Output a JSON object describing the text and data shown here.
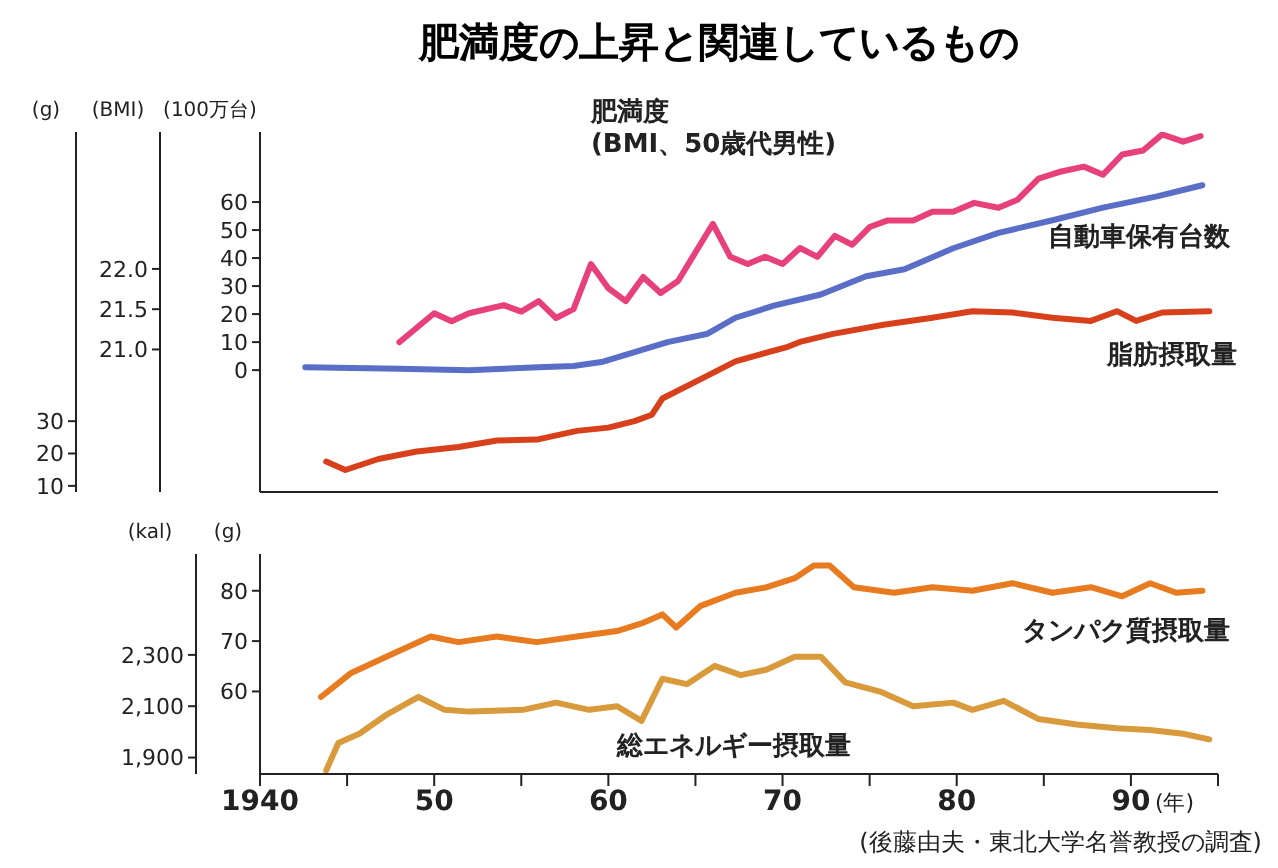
{
  "chart_data": [
    {
      "type": "line",
      "title": "肥満度の上昇と関連しているもの",
      "ylabel": "(100万台)",
      "y2label": "(BMI)",
      "y3label": "(g)",
      "xlim": [
        1940,
        1995
      ],
      "tick_labels": "y",
      "ylim": [
        -43.5,
        85
      ],
      "yticks": [
        0,
        10,
        20,
        30,
        40,
        50,
        60
      ],
      "y2lim": [
        19.23,
        23.7
      ],
      "y2ticks": [
        {
          "value": 21,
          "label": "21.0"
        },
        21.5,
        {
          "value": 22,
          "label": "22.0"
        }
      ],
      "y3lim": [
        8.1,
        119.4
      ],
      "y3ticks": [
        10,
        20,
        30
      ],
      "series": [
        {
          "name": "肥満度\n(BMI、50歳代男性)",
          "color": "#e8407a",
          "axis": "y2",
          "x": [
            1948,
            1950,
            1951,
            1952,
            1954,
            1955,
            1956,
            1957,
            1958,
            1959,
            1960,
            1961,
            1962,
            1963,
            1964,
            1966,
            1967,
            1968,
            1969,
            1970,
            1971,
            1972,
            1973,
            1974,
            1975,
            1976,
            1977.5,
            1978.6,
            1979.8,
            1981,
            1982.4,
            1983.5,
            1984.7,
            1986,
            1987.3,
            1988.4,
            1989.5,
            1990.7,
            1991.8,
            1993,
            1994
          ],
          "values": [
            21.09,
            21.45,
            21.35,
            21.45,
            21.55,
            21.47,
            21.6,
            21.39,
            21.5,
            22.06,
            21.76,
            21.6,
            21.9,
            21.7,
            21.85,
            22.56,
            22.15,
            22.06,
            22.15,
            22.06,
            22.26,
            22.15,
            22.41,
            22.3,
            22.52,
            22.6,
            22.6,
            22.71,
            22.71,
            22.82,
            22.76,
            22.86,
            23.12,
            23.21,
            23.27,
            23.17,
            23.42,
            23.47,
            23.67,
            23.58,
            23.65
          ]
        },
        {
          "name": "自動車保有台数",
          "color": "#5a6ec8",
          "x": [
            1942.6,
            1948,
            1952,
            1956,
            1958,
            1959.7,
            1963.4,
            1965.7,
            1967.3,
            1969.5,
            1972.2,
            1974.8,
            1977,
            1979.8,
            1982.4,
            1985.5,
            1988.4,
            1991.5,
            1994.1
          ],
          "values": [
            1,
            0.5,
            0,
            1,
            1.5,
            3,
            10,
            13,
            18.7,
            23,
            27,
            33.5,
            36,
            43.5,
            49,
            53.5,
            58,
            62,
            66
          ]
        },
        {
          "name": "脂肪摂取量",
          "color": "#d8401c",
          "axis": "y3",
          "x": [
            1943.8,
            1944.9,
            1946.8,
            1949,
            1951.4,
            1953.6,
            1955.9,
            1958.2,
            1960,
            1961.5,
            1962.5,
            1963.1,
            1965.3,
            1967.3,
            1970.3,
            1971,
            1972.9,
            1975.8,
            1978.6,
            1980.9,
            1983.2,
            1985.5,
            1987.7,
            1989.2,
            1990.3,
            1991.8,
            1994.5
          ],
          "values": [
            17.5,
            14.9,
            18.3,
            20.6,
            22,
            24,
            24.3,
            27,
            28,
            30,
            32,
            37,
            43,
            48.5,
            53,
            54.5,
            57,
            59.8,
            62,
            64,
            63.6,
            62,
            61,
            64,
            61,
            63.6,
            64
          ]
        }
      ]
    },
    {
      "type": "line",
      "xlabel": "(年)",
      "ylabel": "(g)",
      "y2label": "(kal)",
      "xlim": [
        1940,
        1995
      ],
      "xticks": [
        1940,
        {
          "value": 1945,
          "label": null
        },
        {
          "value": 1950,
          "label": "50"
        },
        {
          "value": 1955,
          "label": null
        },
        {
          "value": 1960,
          "label": "60"
        },
        {
          "value": 1965,
          "label": null
        },
        {
          "value": 1970,
          "label": "70"
        },
        {
          "value": 1975,
          "label": null
        },
        {
          "value": 1980,
          "label": "80"
        },
        {
          "value": 1985,
          "label": null
        },
        {
          "value": 1990,
          "label": "90"
        },
        {
          "value": 1995,
          "label": null
        }
      ],
      "ylim": [
        43.6,
        87.3
      ],
      "yticks": [
        60,
        70,
        80
      ],
      "y2lim": [
        1836,
        2693
      ],
      "y2ticks": [
        {
          "value": 1900,
          "label": "1,900"
        },
        {
          "value": 2100,
          "label": "2,100"
        },
        {
          "value": 2300,
          "label": "2,300"
        }
      ],
      "series": [
        {
          "name": "タンパク質摂取量",
          "color": "#e87a20",
          "x": [
            1943.5,
            1945.2,
            1947.5,
            1949.8,
            1951.4,
            1953.6,
            1955.9,
            1958.2,
            1960.5,
            1961.9,
            1963.1,
            1963.9,
            1965.3,
            1967.3,
            1969.1,
            1970.7,
            1971.8,
            1972.7,
            1974.1,
            1976.4,
            1978.6,
            1980.9,
            1983.2,
            1985.5,
            1987.7,
            1989.5,
            1991.1,
            1992.6,
            1994.1
          ],
          "values": [
            58.9,
            63.6,
            67.3,
            70.9,
            69.8,
            70.9,
            69.8,
            70.9,
            72,
            73.5,
            75.3,
            72.7,
            77,
            79.6,
            80.7,
            82.5,
            85,
            85,
            80.7,
            79.6,
            80.7,
            80,
            81.5,
            79.6,
            80.7,
            78.9,
            81.5,
            79.6,
            80
          ]
        },
        {
          "name": "総エネルギー摂取量",
          "color": "#d89a3a",
          "axis": "y2",
          "x": [
            1943.8,
            1944.5,
            1945.7,
            1947.2,
            1949.1,
            1950.6,
            1952,
            1955.1,
            1957,
            1958.9,
            1960.5,
            1961.9,
            1963.1,
            1964.5,
            1966.1,
            1967.6,
            1969.1,
            1970.7,
            1972.2,
            1973.6,
            1975.6,
            1977.5,
            1979.8,
            1980.9,
            1982.7,
            1984.7,
            1986.9,
            1989.2,
            1991.1,
            1993,
            1994.5
          ],
          "values": [
            1850,
            1957,
            1993,
            2064,
            2136,
            2086,
            2079,
            2086,
            2114,
            2086,
            2100,
            2043,
            2207,
            2186,
            2257,
            2221,
            2243,
            2293,
            2293,
            2193,
            2157,
            2100,
            2114,
            2086,
            2121,
            2050,
            2029,
            2014,
            2007,
            1993,
            1971
          ]
        }
      ],
      "annotations": [
        "(後藤由夫・東北大学名誉教授の調査)"
      ]
    }
  ]
}
